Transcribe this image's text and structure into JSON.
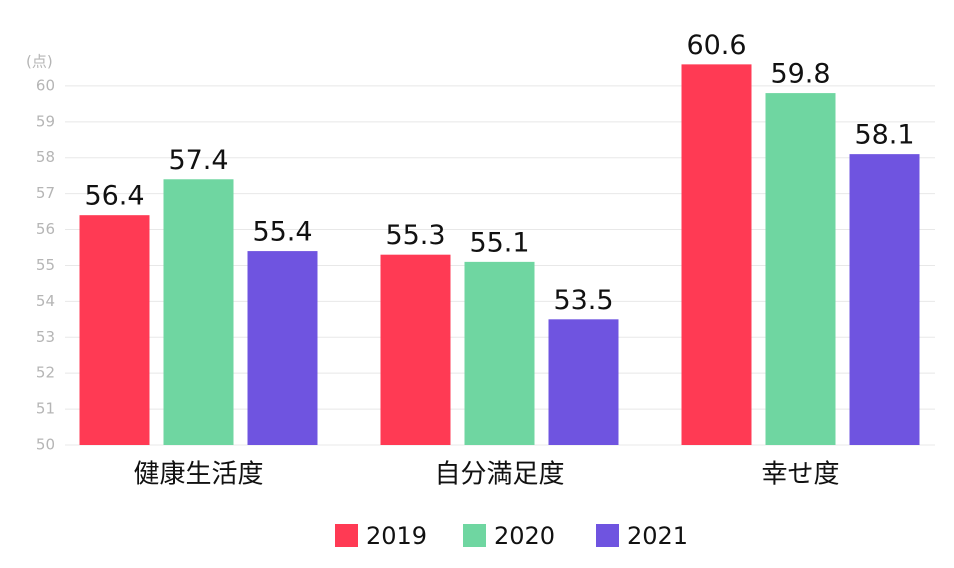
{
  "chart_data": {
    "type": "bar",
    "y_unit": "(点)",
    "categories": [
      "健康生活度",
      "自分満足度",
      "幸せ度"
    ],
    "series": [
      {
        "name": "2019",
        "color": "#ff3a54",
        "values": [
          56.4,
          55.3,
          60.6
        ]
      },
      {
        "name": "2020",
        "color": "#6fd6a1",
        "values": [
          57.4,
          55.1,
          59.8
        ]
      },
      {
        "name": "2021",
        "color": "#6f54e0",
        "values": [
          55.4,
          53.5,
          58.1
        ]
      }
    ],
    "ylim": [
      50,
      61
    ],
    "yticks": [
      50,
      51,
      52,
      53,
      54,
      55,
      56,
      57,
      58,
      59,
      60
    ],
    "grid": true,
    "legend": "bottom"
  }
}
